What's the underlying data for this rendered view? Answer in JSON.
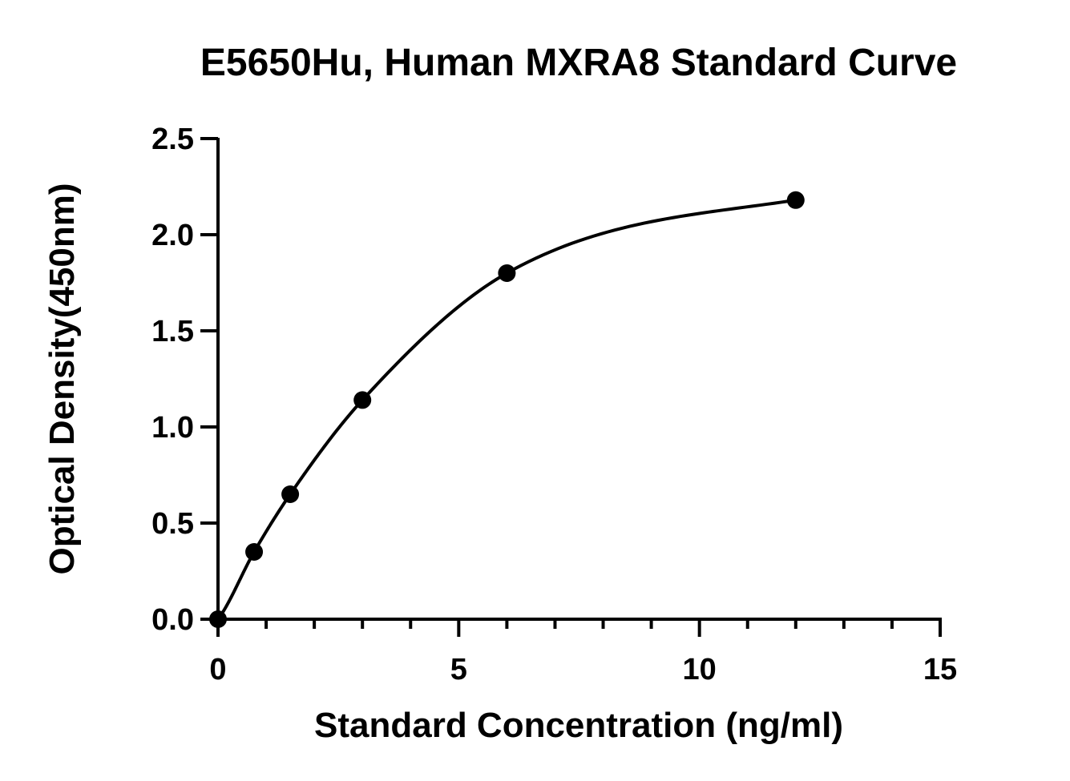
{
  "chart_data": {
    "type": "scatter",
    "title": "E5650Hu, Human MXRA8 Standard Curve",
    "xlabel": "Standard Concentration (ng/ml)",
    "ylabel": "Optical Density(450nm)",
    "xlim": [
      0,
      15
    ],
    "ylim": [
      0,
      2.5
    ],
    "x_ticks": [
      0,
      5,
      10,
      15
    ],
    "x_tick_labels": [
      "0",
      "5",
      "10",
      "15"
    ],
    "x_minor_step": 1,
    "y_ticks": [
      0,
      0.5,
      1.0,
      1.5,
      2.0,
      2.5
    ],
    "y_tick_labels": [
      "0.0",
      "0.5",
      "1.0",
      "1.5",
      "2.0",
      "2.5"
    ],
    "grid": false,
    "series": [
      {
        "x": [
          0,
          0.75,
          1.5,
          3,
          6,
          12
        ],
        "y": [
          0.0,
          0.35,
          0.65,
          1.14,
          1.8,
          2.18
        ],
        "color": "#000000",
        "fit_curve": true
      }
    ]
  }
}
